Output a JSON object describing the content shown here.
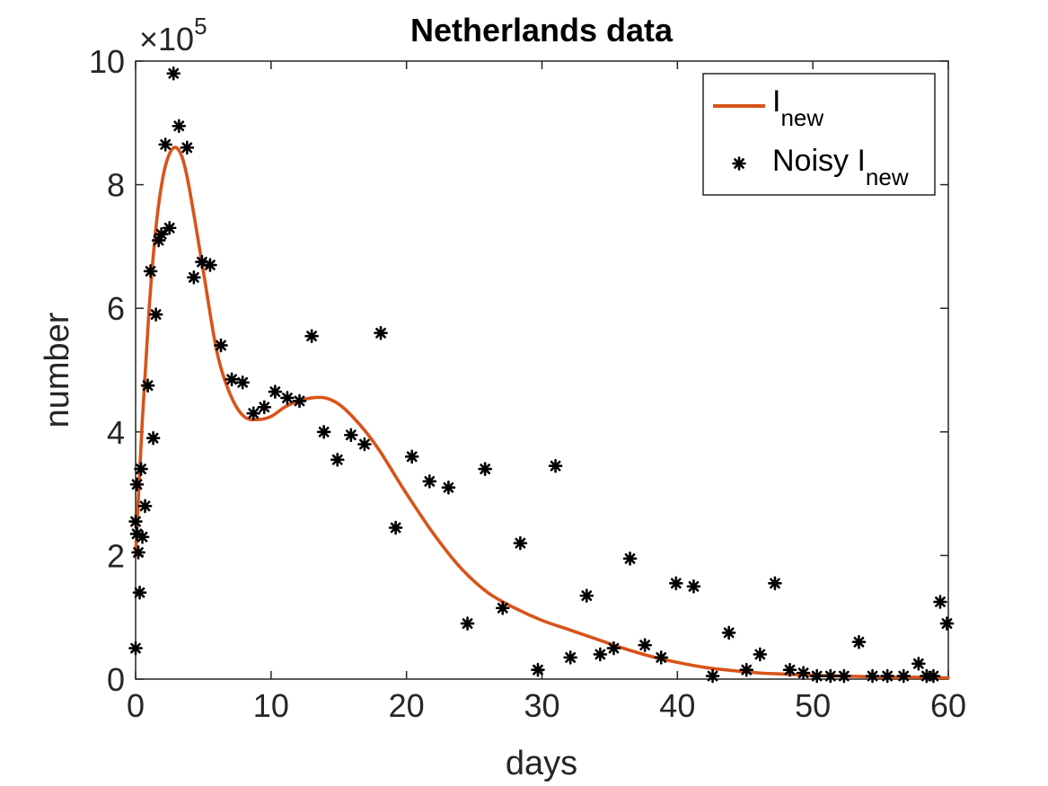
{
  "chart_data": {
    "type": "line+scatter",
    "title": "Netherlands data",
    "xlabel": "days",
    "ylabel": "number",
    "y_exponent_label": {
      "base": "×10",
      "power": "5"
    },
    "xlim": [
      0,
      60
    ],
    "ylim": [
      0,
      10
    ],
    "y_scale_factor": 100000,
    "x_ticks": [
      0,
      10,
      20,
      30,
      40,
      50,
      60
    ],
    "x_tick_labels": [
      "0",
      "10",
      "20",
      "30",
      "40",
      "50",
      "60"
    ],
    "y_ticks": [
      0,
      2,
      4,
      6,
      8,
      10
    ],
    "y_tick_labels": [
      "0",
      "2",
      "4",
      "6",
      "8",
      "10"
    ],
    "grid": false,
    "legend_position": "top-right",
    "colors": {
      "line": "#D95319",
      "markers": "#000000",
      "axes": "#262626"
    },
    "series": [
      {
        "name": "I_new",
        "legend_main": "I",
        "legend_sub": "new",
        "kind": "line",
        "x": [
          0,
          0.5,
          1,
          1.5,
          2,
          2.5,
          3,
          3.5,
          4,
          5,
          6,
          7,
          8,
          9,
          10,
          11,
          12,
          13,
          14,
          15,
          16,
          17,
          18,
          19,
          20,
          22,
          24,
          26,
          28,
          30,
          32,
          34,
          36,
          38,
          40,
          42,
          44,
          46,
          48,
          50,
          52,
          54,
          56,
          58,
          60
        ],
        "y": [
          2.0,
          4.2,
          6.0,
          7.3,
          8.1,
          8.5,
          8.6,
          8.4,
          7.9,
          6.6,
          5.3,
          4.6,
          4.25,
          4.2,
          4.25,
          4.4,
          4.5,
          4.55,
          4.55,
          4.45,
          4.25,
          4.0,
          3.7,
          3.35,
          3.0,
          2.35,
          1.8,
          1.4,
          1.15,
          0.95,
          0.8,
          0.65,
          0.5,
          0.37,
          0.27,
          0.19,
          0.14,
          0.1,
          0.08,
          0.06,
          0.05,
          0.04,
          0.03,
          0.03,
          0.02
        ]
      },
      {
        "name": "Noisy I_new",
        "legend_main": "Noisy I",
        "legend_sub": "new",
        "kind": "scatter",
        "x": [
          0,
          0,
          0.1,
          0.1,
          0.2,
          0.3,
          0.4,
          0.5,
          0.7,
          0.9,
          1.1,
          1.3,
          1.5,
          1.7,
          1.9,
          2.2,
          2.5,
          2.8,
          3.2,
          3.8,
          4.3,
          4.9,
          5.5,
          6.3,
          7.1,
          7.9,
          8.7,
          9.5,
          10.3,
          11.2,
          12.1,
          13,
          13.9,
          14.9,
          15.9,
          16.9,
          18.1,
          19.2,
          20.4,
          21.7,
          23.1,
          24.5,
          25.8,
          27.1,
          28.4,
          29.7,
          31,
          32.1,
          33.3,
          34.3,
          35.3,
          36.5,
          37.6,
          38.8,
          39.9,
          41.2,
          42.6,
          43.8,
          45.1,
          46.1,
          47.2,
          48.3,
          49.3,
          50.3,
          51.3,
          52.3,
          53.4,
          54.4,
          55.5,
          56.7,
          57.8,
          58.4,
          58.9,
          59.4,
          59.9
        ],
        "y": [
          0.5,
          2.55,
          3.15,
          2.35,
          2.05,
          1.4,
          3.4,
          2.3,
          2.8,
          4.75,
          6.6,
          3.9,
          5.9,
          7.1,
          7.2,
          8.65,
          7.3,
          9.8,
          8.95,
          8.6,
          6.5,
          6.75,
          6.7,
          5.4,
          4.85,
          4.8,
          4.3,
          4.4,
          4.65,
          4.55,
          4.5,
          5.55,
          4.0,
          3.55,
          3.95,
          3.8,
          5.6,
          2.45,
          3.6,
          3.2,
          3.1,
          0.9,
          3.4,
          1.15,
          2.2,
          0.15,
          3.45,
          0.35,
          1.35,
          0.4,
          0.5,
          1.95,
          0.55,
          0.35,
          1.55,
          1.5,
          0.05,
          0.75,
          0.15,
          0.4,
          1.55,
          0.15,
          0.1,
          0.05,
          0.05,
          0.05,
          0.6,
          0.05,
          0.05,
          0.05,
          0.25,
          0.05,
          0.05,
          1.25,
          0.9
        ]
      }
    ]
  }
}
